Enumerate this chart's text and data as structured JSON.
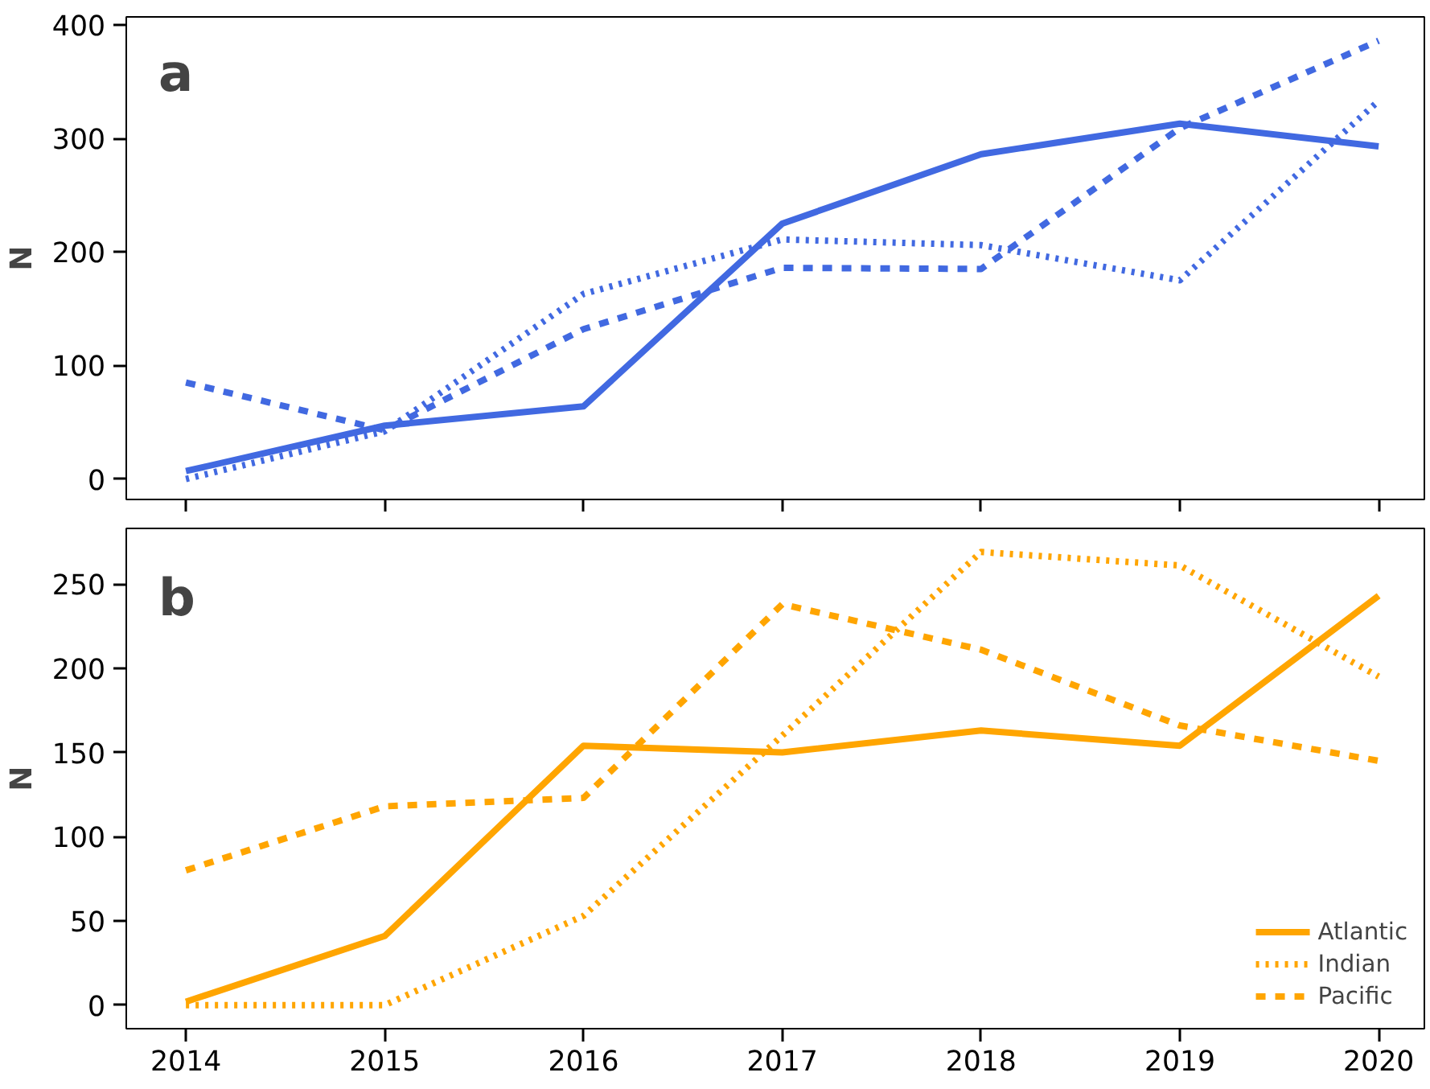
{
  "chart_data": [
    {
      "type": "line",
      "ylabel": "N",
      "annotations": [
        "a"
      ],
      "x": [
        2014,
        2015,
        2016,
        2017,
        2018,
        2019,
        2020
      ],
      "xlim": [
        2013.7,
        2020.23
      ],
      "ylim": [
        -18,
        407
      ],
      "xticks": [
        2014,
        2015,
        2016,
        2017,
        2018,
        2019,
        2020
      ],
      "yticks": [
        0,
        100,
        200,
        300,
        400
      ],
      "tick_labels": "y",
      "grid": false,
      "legend": false,
      "series": [
        {
          "color": "#4169e1",
          "line_style": "solid",
          "values": [
            7,
            47,
            64,
            225,
            286,
            313,
            293
          ]
        },
        {
          "color": "#4169e1",
          "line_style": "dotted",
          "values": [
            0,
            42,
            163,
            211,
            206,
            175,
            333
          ]
        },
        {
          "color": "#4169e1",
          "line_style": "dashed",
          "values": [
            85,
            43,
            132,
            186,
            185,
            309,
            386
          ]
        }
      ]
    },
    {
      "type": "line",
      "ylabel": "N",
      "annotations": [
        "b"
      ],
      "x": [
        2014,
        2015,
        2016,
        2017,
        2018,
        2019,
        2020
      ],
      "xlim": [
        2013.7,
        2020.23
      ],
      "ylim": [
        -14,
        283
      ],
      "xticks": [
        2014,
        2015,
        2016,
        2017,
        2018,
        2019,
        2020
      ],
      "yticks": [
        0,
        50,
        100,
        150,
        200,
        250
      ],
      "grid": false,
      "legend": "bottom right",
      "series": [
        {
          "name": "Atlantic",
          "color": "#ffa500",
          "line_style": "solid",
          "values": [
            2,
            41,
            154,
            150,
            163,
            154,
            243
          ]
        },
        {
          "name": "Indian",
          "color": "#ffa500",
          "line_style": "dotted",
          "values": [
            0,
            0,
            53,
            160,
            269,
            261,
            195
          ]
        },
        {
          "name": "Pacific",
          "color": "#ffa500",
          "line_style": "dashed",
          "values": [
            80,
            118,
            123,
            238,
            211,
            166,
            145
          ]
        }
      ]
    }
  ]
}
